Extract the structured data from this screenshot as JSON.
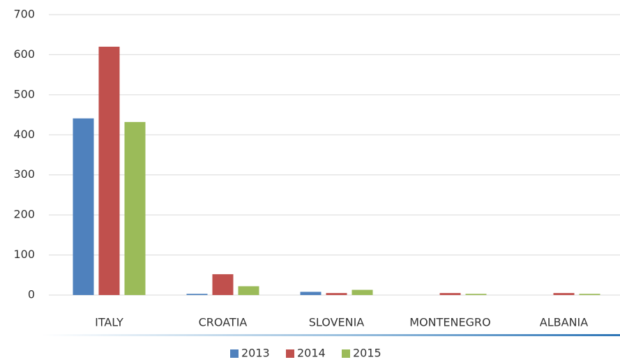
{
  "chart_data": {
    "type": "bar",
    "categories": [
      "ITALY",
      "CROATIA",
      "SLOVENIA",
      "MONTENEGRO",
      "ALBANIA"
    ],
    "series": [
      {
        "name": "2013",
        "color": "#4f81bd",
        "values": [
          441,
          3,
          8,
          0,
          0
        ]
      },
      {
        "name": "2014",
        "color": "#c0504d",
        "values": [
          620,
          52,
          5,
          5,
          5
        ]
      },
      {
        "name": "2015",
        "color": "#9bbb59",
        "values": [
          432,
          22,
          13,
          3,
          3
        ]
      }
    ],
    "ylim": [
      0,
      700
    ],
    "yticks": [
      0,
      100,
      200,
      300,
      400,
      500,
      600,
      700
    ],
    "grid": true,
    "legend": "bottom"
  }
}
